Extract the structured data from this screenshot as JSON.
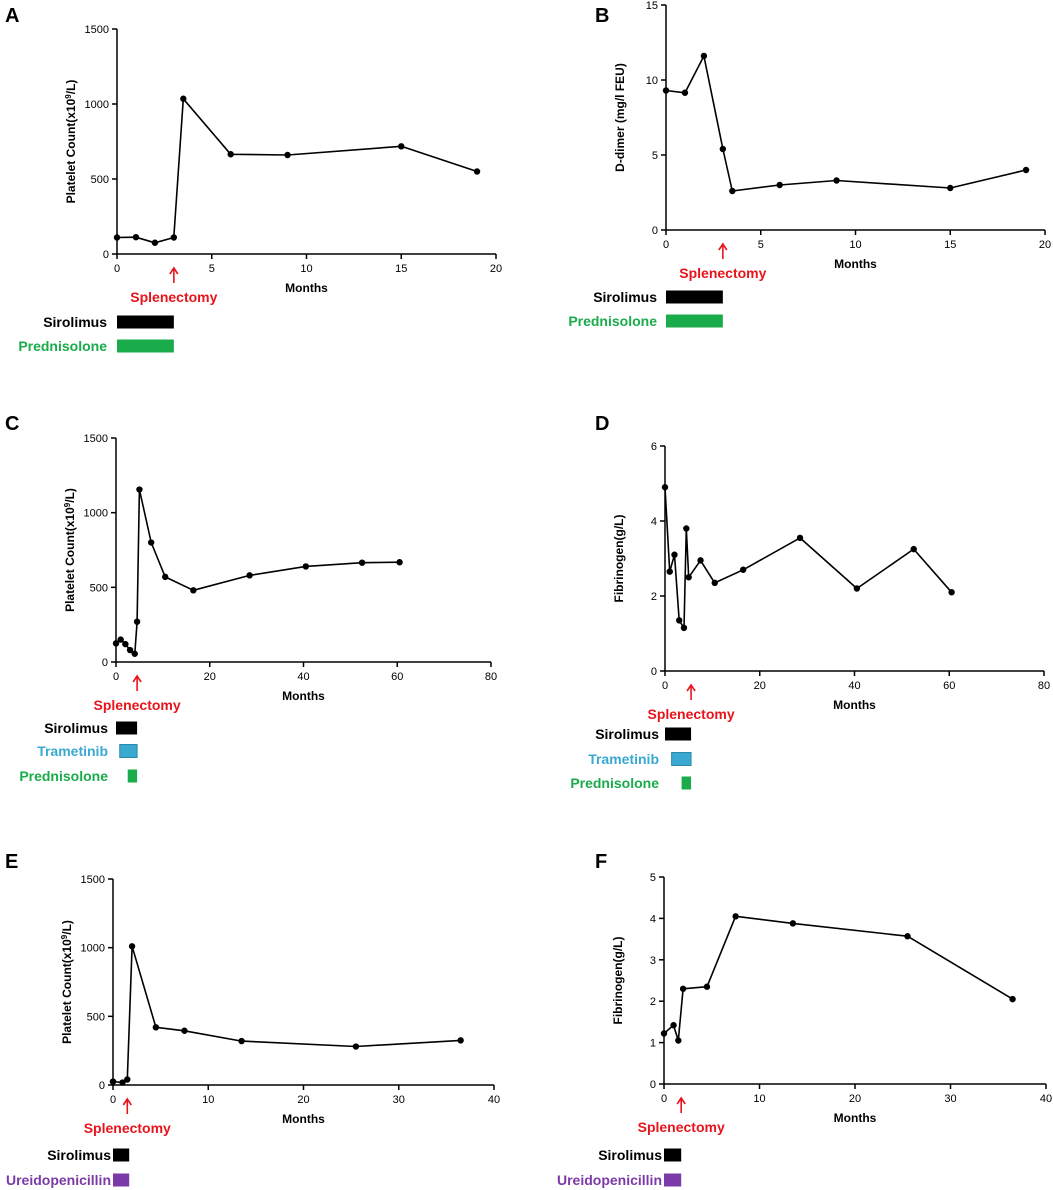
{
  "colors": {
    "axis": "#000000",
    "line": "#000000",
    "splenectomy": "#e8141c",
    "sirolimus": "#000000",
    "prednisolone": "#1aab4b",
    "trametinib": "#3aa9d1",
    "ureidopenicillin": "#7b3aa8"
  },
  "chart_data": [
    {
      "type": "line",
      "panel_label": "A",
      "xlabel": "Months",
      "ylabel_main": "Platelet Count(x10",
      "ylabel_sup": "9",
      "ylabel_end": "/L)",
      "xlim": [
        0,
        20
      ],
      "ylim": [
        0,
        1500
      ],
      "xticks": [
        0,
        5,
        10,
        15,
        20
      ],
      "yticks": [
        0,
        500,
        1000,
        1500
      ],
      "x": [
        0,
        1,
        2,
        3,
        3.5,
        6,
        9,
        15,
        19
      ],
      "y": [
        110,
        112,
        75,
        110,
        1035,
        665,
        660,
        718,
        550
      ],
      "annotation": {
        "text": "Splenectomy",
        "x": 3
      },
      "treatments": [
        {
          "name": "Sirolimus",
          "color_key": "sirolimus",
          "start": 0,
          "end": 3
        },
        {
          "name": "Prednisolone",
          "color_key": "prednisolone",
          "start": 0,
          "end": 3
        }
      ]
    },
    {
      "type": "line",
      "panel_label": "B",
      "xlabel": "Months",
      "ylabel_main": "D-dimer (mg/l FEU)",
      "ylabel_sup": "",
      "ylabel_end": "",
      "xlim": [
        0,
        20
      ],
      "ylim": [
        0,
        15
      ],
      "xticks": [
        0,
        5,
        10,
        15,
        20
      ],
      "yticks": [
        0,
        5,
        10,
        15
      ],
      "x": [
        0,
        1,
        2,
        3,
        3.5,
        6,
        9,
        15,
        19
      ],
      "y": [
        9.3,
        9.15,
        11.6,
        5.4,
        2.6,
        3.0,
        3.3,
        2.8,
        4.0
      ],
      "annotation": {
        "text": "Splenectomy",
        "x": 3
      },
      "treatments": [
        {
          "name": "Sirolimus",
          "color_key": "sirolimus",
          "start": 0,
          "end": 3
        },
        {
          "name": "Prednisolone",
          "color_key": "prednisolone",
          "start": 0,
          "end": 3
        }
      ]
    },
    {
      "type": "line",
      "panel_label": "C",
      "xlabel": "Months",
      "ylabel_main": "Platelet Count(x10",
      "ylabel_sup": "9",
      "ylabel_end": "/L)",
      "xlim": [
        0,
        80
      ],
      "ylim": [
        0,
        1500
      ],
      "xticks": [
        0,
        20,
        40,
        60,
        80
      ],
      "yticks": [
        0,
        500,
        1000,
        1500
      ],
      "x": [
        0,
        1,
        2,
        3,
        4,
        4.5,
        5,
        7.5,
        10.5,
        16.5,
        28.5,
        40.5,
        52.5,
        60.5
      ],
      "y": [
        125,
        150,
        120,
        80,
        55,
        270,
        1155,
        800,
        570,
        480,
        580,
        640,
        665,
        668
      ],
      "annotation": {
        "text": "Splenectomy",
        "x": 4.5
      },
      "treatments": [
        {
          "name": "Sirolimus",
          "color_key": "sirolimus",
          "start": 0,
          "end": 4.5
        },
        {
          "name": "Trametinib",
          "color_key": "trametinib",
          "start": 0.8,
          "end": 4.5
        },
        {
          "name": "Prednisolone",
          "color_key": "prednisolone",
          "start": 2.5,
          "end": 4.5
        }
      ]
    },
    {
      "type": "line",
      "panel_label": "D",
      "xlabel": "Months",
      "ylabel_main": "Fibrinogen(g/L)",
      "ylabel_sup": "",
      "ylabel_end": "",
      "xlim": [
        0,
        80
      ],
      "ylim": [
        0,
        6
      ],
      "xticks": [
        0,
        20,
        40,
        60,
        80
      ],
      "yticks": [
        0,
        2,
        4,
        6
      ],
      "x": [
        0,
        1,
        2,
        3,
        4,
        4.5,
        5,
        7.5,
        10.5,
        16.5,
        28.5,
        40.5,
        52.5,
        60.5
      ],
      "y": [
        4.9,
        2.65,
        3.1,
        1.35,
        1.15,
        3.8,
        2.5,
        2.95,
        2.35,
        2.7,
        3.55,
        2.2,
        3.25,
        2.1
      ],
      "annotation": {
        "text": "Splenectomy",
        "x": 5.5
      },
      "treatments": [
        {
          "name": "Sirolimus",
          "color_key": "sirolimus",
          "start": 0,
          "end": 5.5
        },
        {
          "name": "Trametinib",
          "color_key": "trametinib",
          "start": 1.4,
          "end": 5.5
        },
        {
          "name": "Prednisolone",
          "color_key": "prednisolone",
          "start": 3.5,
          "end": 5.5
        }
      ]
    },
    {
      "type": "line",
      "panel_label": "E",
      "xlabel": "Months",
      "ylabel_main": "Platelet Count(x10",
      "ylabel_sup": "9",
      "ylabel_end": "/L)",
      "xlim": [
        0,
        40
      ],
      "ylim": [
        0,
        1500
      ],
      "xticks": [
        0,
        10,
        20,
        30,
        40
      ],
      "yticks": [
        0,
        500,
        1000,
        1500
      ],
      "x": [
        0,
        1,
        1.5,
        2,
        4.5,
        7.5,
        13.5,
        25.5,
        36.5
      ],
      "y": [
        25,
        18,
        40,
        1010,
        420,
        395,
        320,
        280,
        325
      ],
      "annotation": {
        "text": "Splenectomy",
        "x": 1.5
      },
      "treatments": [
        {
          "name": "Sirolimus",
          "color_key": "sirolimus",
          "start": 0,
          "end": 1.7
        },
        {
          "name": "Ureidopenicillin",
          "color_key": "ureidopenicillin",
          "start": 0,
          "end": 1.7
        }
      ]
    },
    {
      "type": "line",
      "panel_label": "F",
      "xlabel": "Months",
      "ylabel_main": "Fibrinogen(g/L)",
      "ylabel_sup": "",
      "ylabel_end": "",
      "xlim": [
        0,
        40
      ],
      "ylim": [
        0,
        5
      ],
      "xticks": [
        0,
        10,
        20,
        30,
        40
      ],
      "yticks": [
        0,
        1,
        2,
        3,
        4,
        5
      ],
      "x": [
        0,
        1,
        1.5,
        2,
        4.5,
        7.5,
        13.5,
        25.5,
        36.5
      ],
      "y": [
        1.22,
        1.42,
        1.05,
        2.3,
        2.35,
        4.05,
        3.88,
        3.57,
        2.05
      ],
      "annotation": {
        "text": "Splenectomy",
        "x": 1.8
      },
      "treatments": [
        {
          "name": "Sirolimus",
          "color_key": "sirolimus",
          "start": 0,
          "end": 1.8
        },
        {
          "name": "Ureidopenicillin",
          "color_key": "ureidopenicillin",
          "start": 0,
          "end": 1.8
        }
      ]
    }
  ]
}
